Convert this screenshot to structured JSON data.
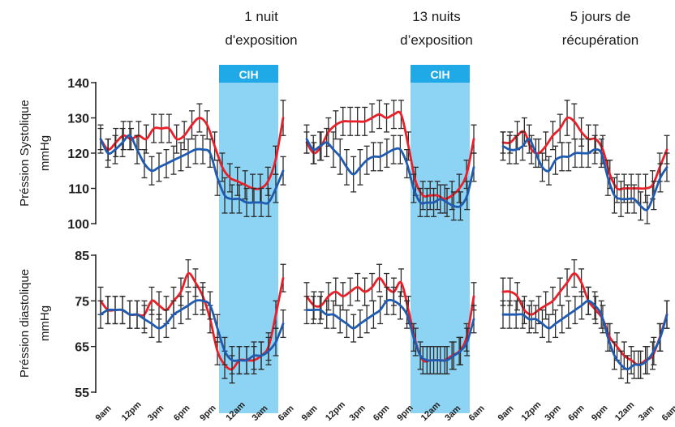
{
  "colors": {
    "shade": "#8dd3f3",
    "cih_bar": "#1fa9e6",
    "red": "#e8202a",
    "blue": "#1f5bb0",
    "err": "#2b2b2b",
    "axis": "#222222"
  },
  "titles": [
    "1 nuit\nd'exposition",
    "13 nuits\nd’exposition",
    "5 jours de\nrécupération"
  ],
  "cih_label": "CIH",
  "ylabels": {
    "top": [
      "Préssion Systolique",
      "mmHg"
    ],
    "bottom": [
      "Préssion diastolique",
      "mmHg"
    ]
  },
  "chart_data": {
    "type": "line",
    "x_tick_labels": [
      "9am",
      "12pm",
      "3pm",
      "6pm",
      "9pm",
      "12am",
      "3am",
      "6am"
    ],
    "cih_shading": "12am to 6am in panels 1 and 2",
    "panels": [
      {
        "name": "Préssion Systolique",
        "unit": "mmHg",
        "ylim": [
          100,
          140
        ],
        "yticks": [
          100,
          110,
          120,
          130,
          140
        ],
        "groups": [
          {
            "title": "1 nuit d'exposition",
            "cih": true,
            "series": [
              {
                "color": "red",
                "values": [
                  124,
                  121,
                  123,
                  125,
                  124,
                  125,
                  124,
                  127,
                  127,
                  127,
                  124,
                  125,
                  128,
                  130,
                  128,
                  122,
                  116,
                  113,
                  112,
                  111,
                  110,
                  110,
                  112,
                  118,
                  130
                ],
                "err": [
                  3,
                  3,
                  4,
                  4,
                  3,
                  4,
                  4,
                  4,
                  4,
                  4,
                  4,
                  4,
                  4,
                  4,
                  4,
                  4,
                  4,
                  4,
                  4,
                  4,
                  4,
                  4,
                  4,
                  4,
                  5
                ]
              },
              {
                "color": "blue",
                "values": [
                  124,
                  120,
                  121,
                  123,
                  125,
                  121,
                  117,
                  115,
                  116,
                  117,
                  118,
                  119,
                  120,
                  121,
                  121,
                  120,
                  113,
                  108,
                  107,
                  107,
                  106,
                  106,
                  106,
                  106,
                  110,
                  115
                ],
                "err": [
                  4,
                  4,
                  4,
                  4,
                  4,
                  4,
                  4,
                  4,
                  4,
                  4,
                  4,
                  4,
                  4,
                  4,
                  4,
                  4,
                  5,
                  5,
                  4,
                  4,
                  4,
                  4,
                  4,
                  4,
                  4,
                  4
                ]
              }
            ]
          },
          {
            "title": "13 nuits d’exposition",
            "cih": true,
            "series": [
              {
                "color": "red",
                "values": [
                  123,
                  120,
                  122,
                  126,
                  128,
                  129,
                  129,
                  129,
                  129,
                  130,
                  131,
                  130,
                  131,
                  131,
                  122,
                  112,
                  108,
                  108,
                  108,
                  107,
                  108,
                  110,
                  114,
                  124
                ],
                "err": [
                  3,
                  3,
                  4,
                  4,
                  4,
                  4,
                  4,
                  4,
                  4,
                  4,
                  4,
                  4,
                  4,
                  4,
                  4,
                  4,
                  4,
                  4,
                  4,
                  4,
                  4,
                  4,
                  4,
                  4
                ]
              },
              {
                "color": "blue",
                "values": [
                  124,
                  121,
                  122,
                  123,
                  121,
                  119,
                  116,
                  114,
                  116,
                  118,
                  119,
                  119,
                  120,
                  121,
                  121,
                  117,
                  110,
                  106,
                  106,
                  106,
                  107,
                  106,
                  105,
                  105,
                  108,
                  116
                ],
                "err": [
                  4,
                  4,
                  4,
                  4,
                  5,
                  5,
                  5,
                  5,
                  5,
                  4,
                  4,
                  4,
                  4,
                  4,
                  4,
                  4,
                  4,
                  4,
                  4,
                  4,
                  4,
                  4,
                  4,
                  4,
                  4,
                  4
                ]
              }
            ]
          },
          {
            "title": "5 jours de récupération",
            "cih": false,
            "series": [
              {
                "color": "red",
                "values": [
                  123,
                  123,
                  125,
                  126,
                  121,
                  120,
                  122,
                  125,
                  127,
                  130,
                  129,
                  126,
                  124,
                  124,
                  121,
                  114,
                  110,
                  110,
                  110,
                  110,
                  110,
                  111,
                  116,
                  121
                ],
                "err": [
                  3,
                  3,
                  4,
                  4,
                  4,
                  4,
                  4,
                  4,
                  4,
                  5,
                  5,
                  4,
                  4,
                  4,
                  4,
                  4,
                  4,
                  4,
                  4,
                  4,
                  4,
                  4,
                  4,
                  4
                ]
              },
              {
                "color": "blue",
                "values": [
                  122,
                  121,
                  121,
                  122,
                  124,
                  120,
                  116,
                  115,
                  118,
                  119,
                  119,
                  120,
                  120,
                  120,
                  121,
                  120,
                  113,
                  108,
                  107,
                  107,
                  107,
                  105,
                  104,
                  108,
                  113,
                  116
                ],
                "err": [
                  4,
                  4,
                  4,
                  4,
                  4,
                  4,
                  4,
                  4,
                  4,
                  4,
                  4,
                  4,
                  4,
                  4,
                  4,
                  4,
                  5,
                  5,
                  5,
                  4,
                  4,
                  4,
                  4,
                  4,
                  4,
                  4
                ]
              }
            ]
          }
        ]
      },
      {
        "name": "Préssion diastolique",
        "unit": "mmHg",
        "ylim": [
          55,
          85
        ],
        "yticks": [
          55,
          65,
          75,
          85
        ],
        "groups": [
          {
            "title": "1 nuit d'exposition",
            "cih": true,
            "series": [
              {
                "color": "red",
                "values": [
                  75,
                  73,
                  73,
                  73,
                  72,
                  72,
                  72,
                  75,
                  74,
                  73,
                  75,
                  77,
                  81,
                  79,
                  76,
                  71,
                  64,
                  61,
                  60,
                  62,
                  62,
                  62,
                  63,
                  65,
                  72,
                  80
                ],
                "err": [
                  3,
                  3,
                  3,
                  3,
                  3,
                  3,
                  3,
                  3,
                  3,
                  3,
                  3,
                  3,
                  3,
                  3,
                  3,
                  3,
                  3,
                  3,
                  3,
                  3,
                  3,
                  3,
                  3,
                  3,
                  3,
                  3
                ]
              },
              {
                "color": "blue",
                "values": [
                  72,
                  73,
                  73,
                  73,
                  72,
                  72,
                  71,
                  70,
                  69,
                  70,
                  72,
                  73,
                  74,
                  75,
                  75,
                  74,
                  69,
                  64,
                  62,
                  62,
                  62,
                  63,
                  63,
                  64,
                  66,
                  70
                ],
                "err": [
                  3,
                  3,
                  3,
                  3,
                  3,
                  3,
                  3,
                  3,
                  3,
                  3,
                  3,
                  3,
                  3,
                  3,
                  3,
                  3,
                  3,
                  3,
                  3,
                  3,
                  3,
                  3,
                  3,
                  3,
                  3,
                  3
                ]
              }
            ]
          },
          {
            "title": "13 nuits d’exposition",
            "cih": true,
            "series": [
              {
                "color": "red",
                "values": [
                  76,
                  74,
                  74,
                  76,
                  77,
                  76,
                  77,
                  78,
                  77,
                  78,
                  80,
                  78,
                  77,
                  79,
                  73,
                  66,
                  62,
                  62,
                  62,
                  62,
                  63,
                  64,
                  67,
                  76
                ],
                "err": [
                  3,
                  3,
                  3,
                  3,
                  3,
                  3,
                  3,
                  3,
                  3,
                  3,
                  3,
                  3,
                  3,
                  3,
                  3,
                  3,
                  3,
                  3,
                  3,
                  3,
                  3,
                  3,
                  3,
                  3
                ]
              },
              {
                "color": "blue",
                "values": [
                  73,
                  73,
                  73,
                  72,
                  72,
                  71,
                  70,
                  69,
                  70,
                  71,
                  72,
                  73,
                  75,
                  75,
                  74,
                  72,
                  67,
                  63,
                  62,
                  62,
                  62,
                  62,
                  63,
                  64,
                  66,
                  71
                ],
                "err": [
                  3,
                  3,
                  3,
                  3,
                  3,
                  3,
                  3,
                  3,
                  3,
                  3,
                  3,
                  3,
                  3,
                  3,
                  3,
                  3,
                  3,
                  3,
                  3,
                  3,
                  3,
                  3,
                  3,
                  3,
                  3,
                  3
                ]
              }
            ]
          },
          {
            "title": "5 jours de récupération",
            "cih": false,
            "series": [
              {
                "color": "red",
                "values": [
                  77,
                  77,
                  76,
                  73,
                  72,
                  73,
                  74,
                  75,
                  77,
                  79,
                  81,
                  79,
                  75,
                  73,
                  71,
                  67,
                  65,
                  63,
                  62,
                  61,
                  62,
                  63,
                  67,
                  72
                ],
                "err": [
                  3,
                  3,
                  3,
                  3,
                  3,
                  3,
                  3,
                  3,
                  3,
                  3,
                  3,
                  3,
                  3,
                  3,
                  3,
                  3,
                  3,
                  3,
                  3,
                  3,
                  3,
                  3,
                  3,
                  3
                ]
              },
              {
                "color": "blue",
                "values": [
                  72,
                  72,
                  72,
                  72,
                  71,
                  71,
                  70,
                  69,
                  70,
                  71,
                  72,
                  73,
                  74,
                  75,
                  74,
                  72,
                  67,
                  63,
                  61,
                  60,
                  61,
                  61,
                  62,
                  64,
                  67,
                  72
                ],
                "err": [
                  3,
                  3,
                  3,
                  3,
                  3,
                  3,
                  3,
                  3,
                  3,
                  3,
                  3,
                  3,
                  3,
                  3,
                  3,
                  3,
                  3,
                  3,
                  3,
                  3,
                  3,
                  3,
                  3,
                  3,
                  3,
                  3
                ]
              }
            ]
          }
        ]
      }
    ]
  }
}
